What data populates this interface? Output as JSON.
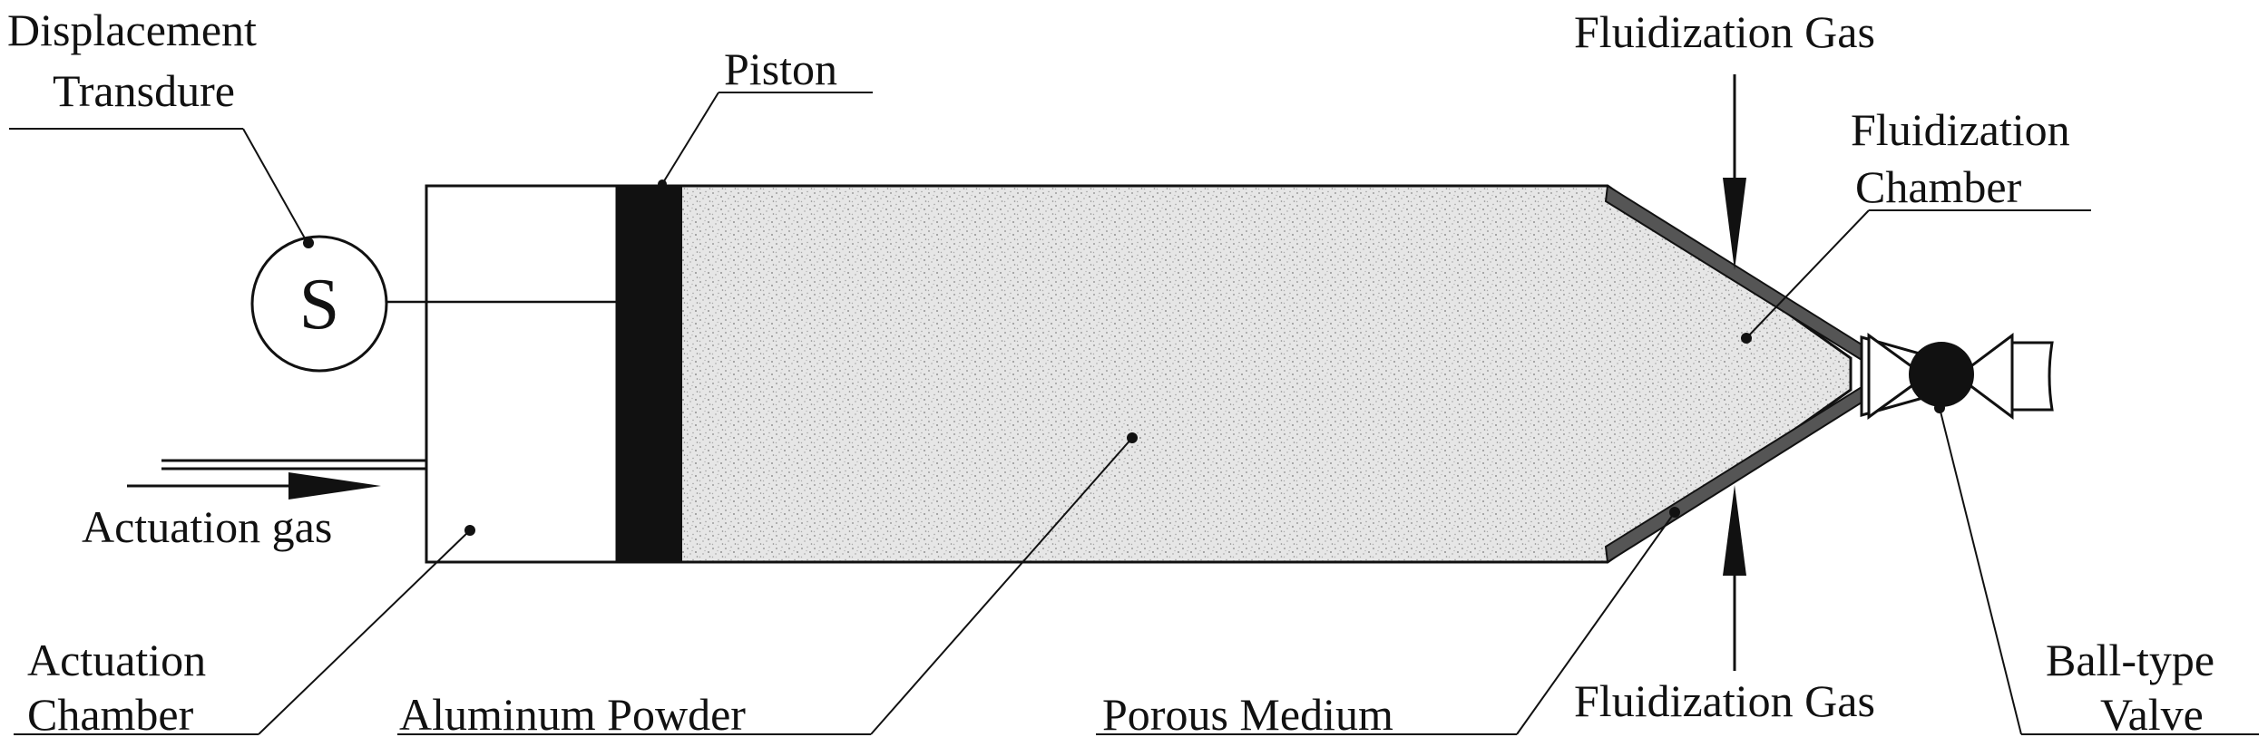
{
  "labels": {
    "displacement_line1": "Displacement",
    "displacement_line2": "Transdure",
    "sensor_symbol": "S",
    "piston": "Piston",
    "fluidization_gas_top": "Fluidization Gas",
    "fluidization_chamber_line1": "Fluidization",
    "fluidization_chamber_line2": "Chamber",
    "actuation_gas": "Actuation gas",
    "actuation_chamber_line1": "Actuation",
    "actuation_chamber_line2": "Chamber",
    "aluminum_powder": "Aluminum Powder",
    "porous_medium": "Porous Medium",
    "fluidization_gas_bottom": "Fluidization Gas",
    "ball_valve_line1": "Ball-type",
    "ball_valve_line2": "Valve"
  },
  "colors": {
    "ink": "#111111",
    "powder": "#cfcfcf",
    "porous_medium": "#555555"
  }
}
